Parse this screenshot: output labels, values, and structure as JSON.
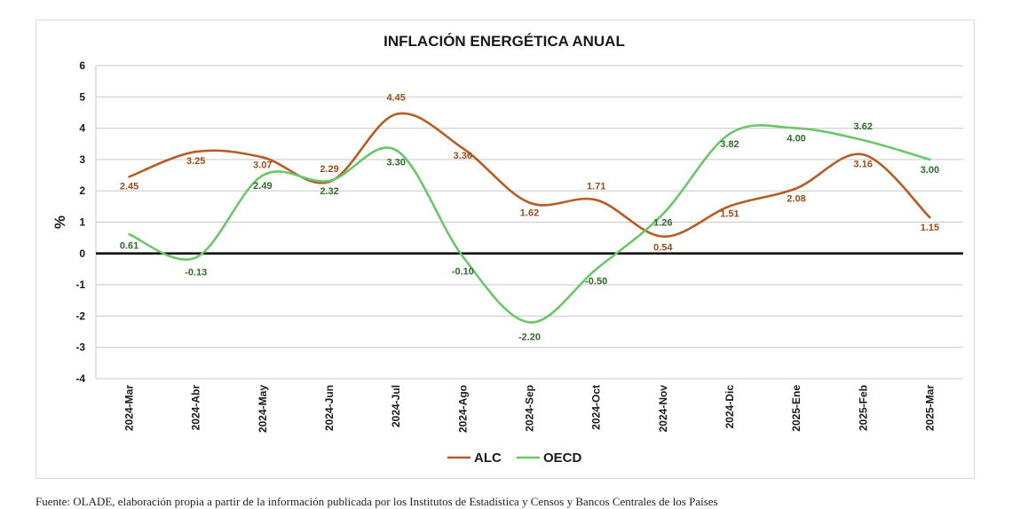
{
  "chart_data": {
    "type": "line",
    "title": "INFLACIÓN ENERGÉTICA ANUAL",
    "xlabel": "",
    "ylabel": "%",
    "ylim": [
      -4,
      6
    ],
    "yticks": [
      6,
      5,
      4,
      3,
      2,
      1,
      0,
      -1,
      -2,
      -3,
      -4
    ],
    "grid": true,
    "legend_position": "bottom",
    "categories": [
      "2024-Mar",
      "2024-Abr",
      "2024-May",
      "2024-Jun",
      "2024-Jul",
      "2024-Ago",
      "2024-Sep",
      "2024-Oct",
      "2024-Nov",
      "2024-Dic",
      "2025-Ene",
      "2025-Feb",
      "2025-Mar"
    ],
    "series": [
      {
        "name": "ALC",
        "color": "#b55d25",
        "label_color": "#9a4e1c",
        "values": [
          2.45,
          3.25,
          3.07,
          2.29,
          4.45,
          3.36,
          1.62,
          1.71,
          0.54,
          1.51,
          2.08,
          3.16,
          1.15
        ],
        "labels": [
          "2.45",
          "3.25",
          "3.07",
          "2.29",
          "4.45",
          "3.36",
          "1.62",
          "1.71",
          "0.54",
          "1.51",
          "2.08",
          "3.16",
          "1.15"
        ]
      },
      {
        "name": "OECD",
        "color": "#6cc66a",
        "label_color": "#2f6b2a",
        "values": [
          0.61,
          -0.13,
          2.49,
          2.32,
          3.3,
          -0.1,
          -2.2,
          -0.5,
          1.26,
          3.82,
          4.0,
          3.62,
          3.0
        ],
        "labels": [
          "0.61",
          "-0.13",
          "2.49",
          "2.32",
          "3.30",
          "-0.10",
          "-2.20",
          "-0.50",
          "1.26",
          "3.82",
          "4.00",
          "3.62",
          "3.00"
        ]
      }
    ]
  },
  "footer": {
    "source_text": "Fuente: OLADE, elaboración propia a partir de la información publicada por los Institutos de Estadística y Censos y Bancos Centrales de los Países"
  }
}
